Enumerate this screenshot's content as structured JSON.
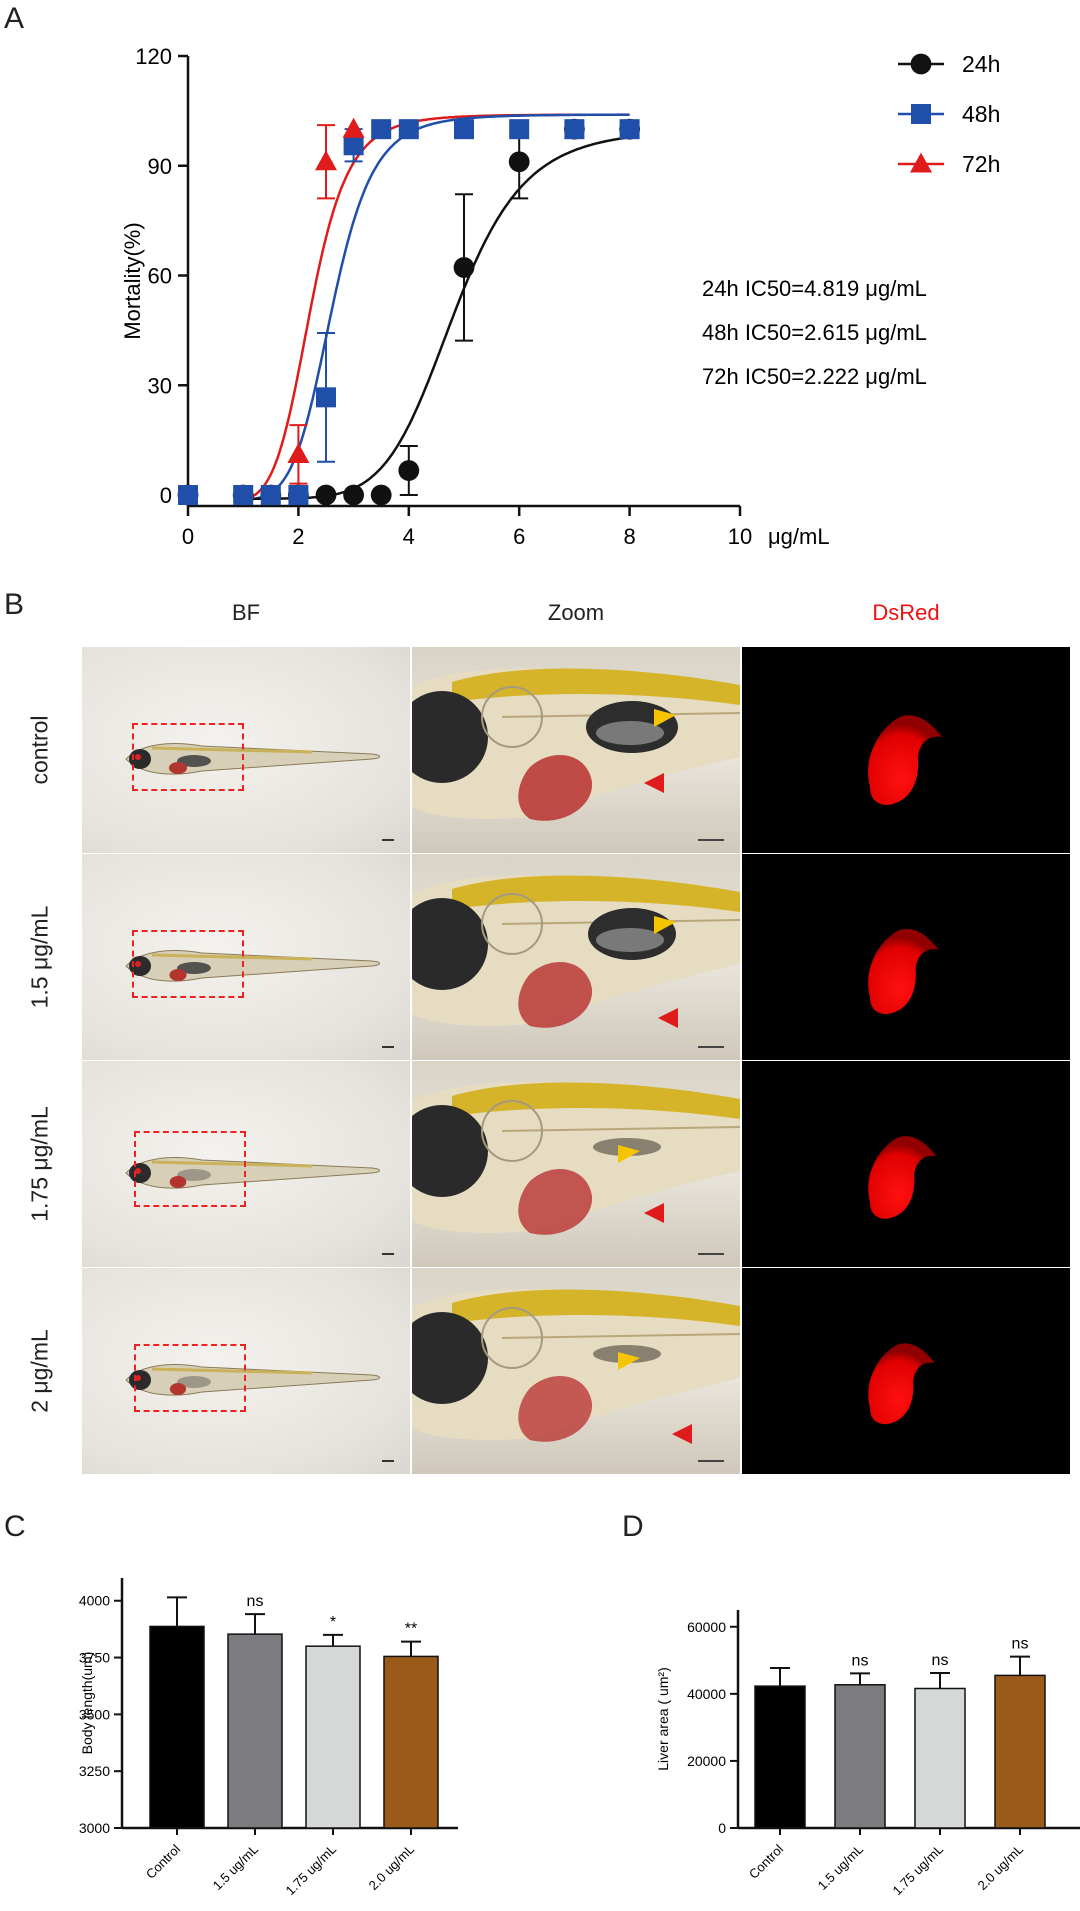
{
  "panels": {
    "A": "A",
    "B": "B",
    "C": "C",
    "D": "D"
  },
  "chart_data": [
    {
      "panel": "A",
      "type": "scatter",
      "title": "",
      "xlabel": "μg/mL",
      "ylabel": "Mortality(%)",
      "xlim": [
        0,
        10
      ],
      "ylim": [
        -3,
        120
      ],
      "xticks": [
        0,
        2,
        4,
        6,
        8,
        10
      ],
      "yticks": [
        0,
        30,
        60,
        90,
        120
      ],
      "legend_position": "top-right",
      "annotations": [
        "24h IC50=4.819 μg/mL",
        "48h IC50=2.615 μg/mL",
        "72h IC50=2.222 μg/mL"
      ],
      "series": [
        {
          "name": "24h",
          "marker": "circle",
          "color": "#111111",
          "ic50": 4.819,
          "hill": 7.5,
          "top": 100,
          "bottom": -1,
          "x": [
            0,
            1,
            1.5,
            2,
            2.5,
            3,
            3.5,
            4,
            5,
            6,
            7,
            8
          ],
          "y": [
            0,
            0,
            0,
            0,
            0,
            0,
            0,
            6.7,
            62.2,
            91.1,
            100,
            100
          ],
          "err": [
            0,
            0,
            0,
            0,
            0,
            0,
            0,
            6.7,
            20,
            10,
            0,
            0
          ]
        },
        {
          "name": "48h",
          "marker": "square",
          "color": "#1f4fa8",
          "ic50": 2.615,
          "hill": 7.0,
          "top": 104,
          "bottom": -1.5,
          "x": [
            0,
            1,
            1.5,
            2,
            2.5,
            3,
            3.5,
            4,
            5,
            6,
            7,
            8
          ],
          "y": [
            0,
            0,
            0,
            0,
            26.7,
            95.6,
            100,
            100,
            100,
            100,
            100,
            100
          ],
          "err": [
            0,
            0,
            0,
            0,
            17.6,
            4.4,
            0,
            0,
            0,
            0,
            0,
            0
          ]
        },
        {
          "name": "72h",
          "marker": "triangle",
          "color": "#e01b1b",
          "ic50": 2.222,
          "hill": 6.5,
          "top": 104,
          "bottom": -2,
          "x": [
            2,
            2.5,
            3
          ],
          "y": [
            11.1,
            91.1,
            100
          ],
          "err": [
            8,
            10,
            0
          ]
        }
      ]
    },
    {
      "panel": "C",
      "type": "bar",
      "title": "",
      "xlabel": "",
      "ylabel": "Body length(um)",
      "categories": [
        "Control",
        "1.5 ug/mL",
        "1.75 ug/mL",
        "2.0 ug/mL"
      ],
      "values": [
        3887,
        3853,
        3800,
        3755
      ],
      "errors": [
        128,
        88,
        50,
        65
      ],
      "significance": [
        "",
        "ns",
        "*",
        "**"
      ],
      "colors": [
        "#000000",
        "#7b7b80",
        "#d4d8d6",
        "#9a5a1a"
      ],
      "ylim": [
        3000,
        4100
      ],
      "yticks": [
        3000,
        3250,
        3500,
        3750,
        4000
      ]
    },
    {
      "panel": "D",
      "type": "bar",
      "title": "",
      "xlabel": "",
      "ylabel": "Liver area ( um²)",
      "categories": [
        "Control",
        "1.5 ug/mL",
        "1.75 ug/mL",
        "2.0 ug/mL"
      ],
      "values": [
        42300,
        42700,
        41600,
        45500
      ],
      "errors": [
        5400,
        3400,
        4600,
        5600
      ],
      "significance": [
        "",
        "ns",
        "ns",
        "ns"
      ],
      "colors": [
        "#000000",
        "#7b7b80",
        "#d4d8d6",
        "#9a5a1a"
      ],
      "ylim": [
        0,
        65000
      ],
      "yticks": [
        0,
        20000,
        40000,
        60000
      ]
    }
  ],
  "panel_b": {
    "columns": [
      "BF",
      "Zoom",
      "DsRed"
    ],
    "dsred_color": "#ee1111",
    "rows": [
      "control",
      "1.5 μg/mL",
      "1.75 μg/mL",
      "2 μg/mL"
    ]
  }
}
